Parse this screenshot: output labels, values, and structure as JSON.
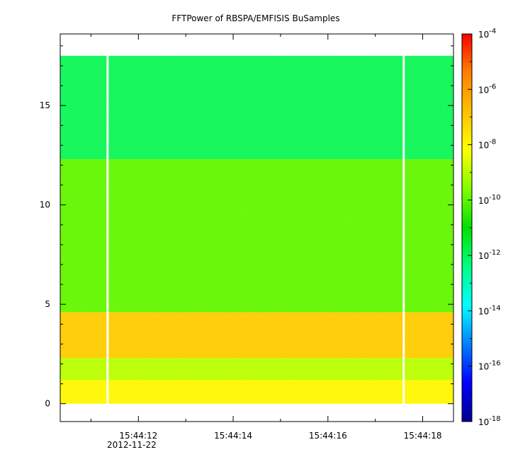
{
  "chart_data": {
    "type": "heatmap",
    "title": "FFTPower of RBSPA/EMFISIS  BuSamples",
    "xlabel": "",
    "ylabel": "",
    "x_ticks": [
      "15:44:12",
      "15:44:14",
      "15:44:16",
      "15:44:18"
    ],
    "x_tick_seconds": [
      12,
      14,
      16,
      18
    ],
    "x_date_label": "2012-11-22",
    "x_range_seconds": [
      10.35,
      18.65
    ],
    "y_ticks": [
      0,
      5,
      10,
      15
    ],
    "ylim": [
      -0.9,
      18.6
    ],
    "data_y_range": [
      0,
      17.5
    ],
    "colorbar": {
      "scale": "log",
      "range": [
        1e-18,
        0.0001
      ],
      "tick_exponents": [
        -18,
        -16,
        -14,
        -12,
        -10,
        -8,
        -6,
        -4
      ],
      "colormap": [
        "#00008f",
        "#0000ff",
        "#0080ff",
        "#00ffff",
        "#00ff80",
        "#00e000",
        "#80ff00",
        "#ffff00",
        "#ffc000",
        "#ff8000",
        "#ff0000"
      ]
    },
    "data_gaps_seconds": [
      11.35,
      17.6
    ],
    "bands": [
      {
        "y_range": [
          12.3,
          17.5
        ],
        "power": 1e-12
      },
      {
        "y_range": [
          4.6,
          12.3
        ],
        "power": 1e-10
      },
      {
        "y_range": [
          2.3,
          4.6
        ],
        "power": 1e-07
      },
      {
        "y_range": [
          1.2,
          2.3
        ],
        "power": 1e-09
      },
      {
        "y_range": [
          0,
          1.2
        ],
        "power": 1e-08
      }
    ],
    "grid": false
  }
}
